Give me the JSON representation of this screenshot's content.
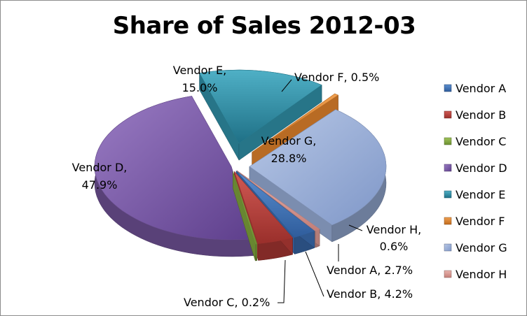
{
  "chart_data": {
    "type": "pie",
    "title": "Share of Sales 2012-03",
    "legend_position": "right",
    "series": [
      {
        "name": "Vendor A",
        "value": 2.7,
        "label": "Vendor A, 2.7%",
        "color": "#3a6cb0"
      },
      {
        "name": "Vendor B",
        "value": 4.2,
        "label": "Vendor B, 4.2%",
        "color": "#b53b36"
      },
      {
        "name": "Vendor C",
        "value": 0.2,
        "label": "Vendor C, 0.2%",
        "color": "#7fa33c"
      },
      {
        "name": "Vendor D",
        "value": 47.9,
        "label": "Vendor D, 47.9%",
        "color": "#7b5aa6"
      },
      {
        "name": "Vendor E",
        "value": 15.0,
        "label": "Vendor E, 15.0%",
        "color": "#2f8fa6"
      },
      {
        "name": "Vendor F",
        "value": 0.5,
        "label": "Vendor F, 0.5%",
        "color": "#e0822c"
      },
      {
        "name": "Vendor G",
        "value": 28.8,
        "label": "Vendor G, 28.8%",
        "color": "#96acd6"
      },
      {
        "name": "Vendor H",
        "value": 0.6,
        "label": "Vendor H, 0.6%",
        "color": "#dc9a94"
      }
    ]
  }
}
